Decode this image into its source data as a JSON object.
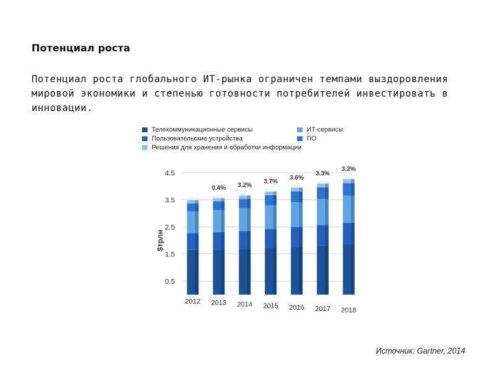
{
  "heading": "Потенциал роста",
  "body_lines": [
    "Потенциал роста глобального ИТ-рынка ограничен темпами выздоровления",
    "мировой экономики и степенью готовности потребителей инвестировать в",
    "инновации."
  ],
  "source": "Источник: Gartner, 2014",
  "chart_data": {
    "type": "bar",
    "stacked": true,
    "title": "",
    "xlabel": "",
    "ylabel": "$трлн",
    "ylim": [
      0,
      4.5
    ],
    "y_ticks": [
      "0.5",
      "1.5",
      "2.5",
      "3.5",
      "4.5"
    ],
    "y_tick_values": [
      0.5,
      1.5,
      2.5,
      3.5,
      4.5
    ],
    "grid": true,
    "legend_position": "top",
    "categories": [
      "2012",
      "2013",
      "2014",
      "2015",
      "2016",
      "2017",
      "2018"
    ],
    "series": [
      {
        "name": "Телекоммуникационные сервисы",
        "color": "#1d5296",
        "values": [
          1.65,
          1.66,
          1.68,
          1.72,
          1.76,
          1.81,
          1.86
        ]
      },
      {
        "name": "ИТ-сервисы",
        "color": "#5ea6e6",
        "values": [
          0.8,
          0.82,
          0.85,
          0.88,
          0.92,
          0.96,
          1.0
        ]
      },
      {
        "name": "Пользовательские устройства",
        "color": "#2660bf",
        "values": [
          0.62,
          0.64,
          0.66,
          0.7,
          0.73,
          0.76,
          0.79
        ]
      },
      {
        "name": "ПО",
        "color": "#2d73d0",
        "values": [
          0.3,
          0.32,
          0.34,
          0.37,
          0.4,
          0.43,
          0.46
        ]
      },
      {
        "name": "Решения для хранения и обработки информации",
        "color": "#8fc1ef",
        "values": [
          0.12,
          0.12,
          0.13,
          0.13,
          0.14,
          0.14,
          0.15
        ]
      }
    ],
    "legend": [
      {
        "label": "Телекоммуникационные сервисы",
        "color": "#1d5296"
      },
      {
        "label": "Пользовательские устройства",
        "color": "#2660bf"
      },
      {
        "label": "Решения для хранения и обработки информации",
        "color": "#8fc1ef"
      },
      {
        "label": "ИТ-сервисы",
        "color": "#5ea6e6"
      },
      {
        "label": "ПО",
        "color": "#2d73d0"
      }
    ],
    "annotations": [
      "",
      "0.4%",
      "3.2%",
      "3.7%",
      "3.6%",
      "3.3%",
      "3.2%"
    ]
  }
}
